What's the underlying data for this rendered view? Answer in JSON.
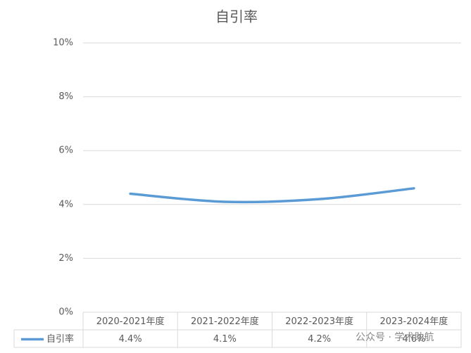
{
  "chart_data": {
    "type": "line",
    "title": "自引率",
    "categories": [
      "2020-2021年度",
      "2021-2022年度",
      "2022-2023年度",
      "2023-2024年度"
    ],
    "series": [
      {
        "name": "自引率",
        "color": "#5b9bd5",
        "values": [
          4.4,
          4.1,
          4.2,
          4.6
        ],
        "value_labels": [
          "4.4%",
          "4.1%",
          "4.2%",
          "4.6%"
        ]
      }
    ],
    "ylim": [
      0,
      10
    ],
    "yticks": [
      {
        "value": 0,
        "label": "0%"
      },
      {
        "value": 2,
        "label": "2%"
      },
      {
        "value": 4,
        "label": "4%"
      },
      {
        "value": 6,
        "label": "6%"
      },
      {
        "value": 8,
        "label": "8%"
      },
      {
        "value": 10,
        "label": "10%"
      }
    ],
    "grid": true,
    "data_table": true
  },
  "watermark": "公众号 · 学术助航"
}
